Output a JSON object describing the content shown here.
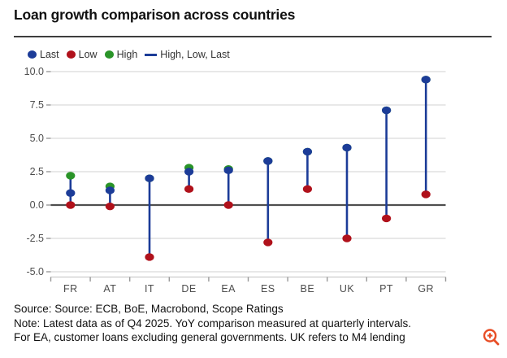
{
  "title": "Loan growth comparison across countries",
  "legend": {
    "items": [
      {
        "id": "last",
        "label": "Last",
        "marker": "dot",
        "color": "#1c3c98"
      },
      {
        "id": "low",
        "label": "Low",
        "marker": "dot",
        "color": "#b0111b"
      },
      {
        "id": "high",
        "label": "High",
        "marker": "dot",
        "color": "#2a9428"
      },
      {
        "id": "range",
        "label": "High, Low, Last",
        "marker": "line",
        "color": "#1c3c98"
      }
    ],
    "position": "top-left"
  },
  "chart_data": {
    "type": "scatter",
    "variant": "high-low-last vertical range (stem/dumbbell) plot",
    "title": "Loan growth comparison across countries",
    "categories": [
      "FR",
      "AT",
      "IT",
      "DE",
      "EA",
      "ES",
      "BE",
      "UK",
      "PT",
      "GR"
    ],
    "series": [
      {
        "name": "Last",
        "color": "#1c3c98",
        "values": [
          0.9,
          1.1,
          2.0,
          2.5,
          2.6,
          3.3,
          4.0,
          4.3,
          7.1,
          9.4
        ]
      },
      {
        "name": "Low",
        "color": "#b0111b",
        "values": [
          0.0,
          -0.1,
          -3.9,
          1.2,
          0.0,
          -2.8,
          1.2,
          -2.5,
          -1.0,
          0.8
        ]
      },
      {
        "name": "High",
        "color": "#2a9428",
        "values": [
          2.2,
          1.4,
          2.0,
          2.8,
          2.7,
          3.3,
          4.0,
          4.3,
          7.1,
          9.4
        ]
      }
    ],
    "xlabel": "",
    "ylabel": "",
    "ylim": [
      -5.0,
      10.0
    ],
    "y_ticks": [
      10.0,
      7.5,
      5.0,
      2.5,
      0.0,
      -2.5,
      -5.0
    ],
    "y_tick_labels": [
      "10.0",
      "7.5",
      "5.0",
      "2.5",
      "0.0",
      "-2.5",
      "-5.0"
    ],
    "grid": true,
    "zero_line": true,
    "legend_position": "top-left"
  },
  "footer": {
    "source": "Source: Source: ECB, BoE, Macrobond, Scope Ratings",
    "note1": "Note: Latest data as of Q4 2025. YoY comparison measured at quarterly intervals.",
    "note2": "For EA, customer loans excluding general governments. UK refers to M4 lending"
  },
  "zoom_button": {
    "icon": "magnifier-plus-icon",
    "color": "#e84e26"
  },
  "colors": {
    "grid": "#d9d9d9",
    "zero_line": "#4f4f4f",
    "axis_line": "#cccccc",
    "tick": "#999999",
    "axis_text": "#4d4d4d",
    "stem": "#1c3c98",
    "rule": "#3d3d3d",
    "text": "#111111"
  }
}
